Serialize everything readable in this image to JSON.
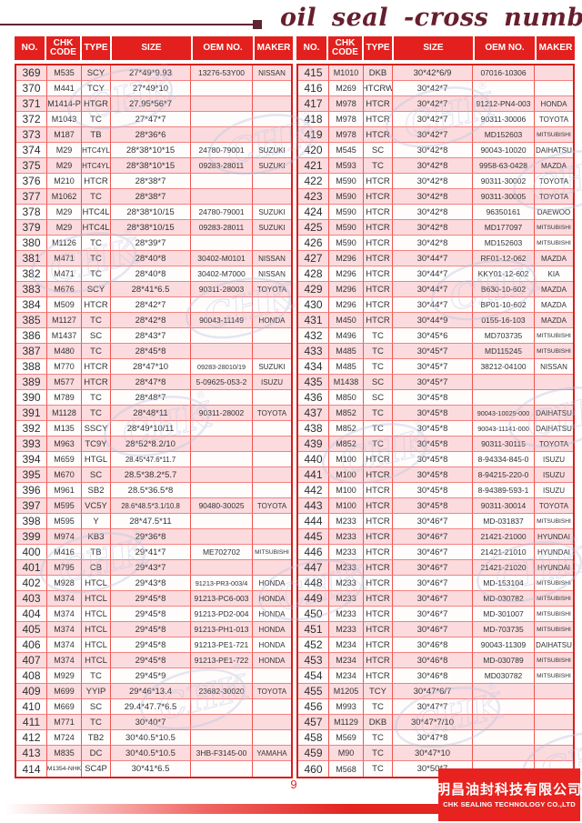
{
  "title": "oil seal -cross number",
  "page_number": "9",
  "columns": [
    "NO.",
    "CHK CODE",
    "TYPE",
    "SIZE",
    "OEM NO.",
    "MAKER"
  ],
  "watermark": {
    "text": "CHK",
    "reg": "®"
  },
  "colors": {
    "header_red": "#e3201d",
    "row_pink": "#fbdbde",
    "row_white": "#fffcfc",
    "grid_red": "#ee5450",
    "title_maroon": "#671f2d",
    "footer_red": "#e8231f",
    "watermark_blue": "#b9c1de"
  },
  "footer": {
    "company_cn": "明昌油封科技有限公司",
    "company_en": "CHK SEALING TECHNOLOGY CO.,LTD"
  },
  "left_table": {
    "rows": [
      [
        "369",
        "M535",
        "SCY",
        "27*49*9.93",
        "13276-53Y00",
        "NISSAN"
      ],
      [
        "370",
        "M441",
        "TCY",
        "27*49*10",
        "",
        ""
      ],
      [
        "371",
        "M1414-P",
        "HTGR",
        "27.95*56*7",
        "",
        ""
      ],
      [
        "372",
        "M1043",
        "TC",
        "27*47*7",
        "",
        ""
      ],
      [
        "373",
        "M187",
        "TB",
        "28*36*6",
        "",
        ""
      ],
      [
        "374",
        "M29",
        "HTC4YL",
        "28*38*10*15",
        "24780-79001",
        "SUZUKI"
      ],
      [
        "375",
        "M29",
        "HTC4YL",
        "28*38*10*15",
        "09283-28011",
        "SUZUKI"
      ],
      [
        "376",
        "M210",
        "HTCR",
        "28*38*7",
        "",
        ""
      ],
      [
        "377",
        "M1062",
        "TC",
        "28*38*7",
        "",
        ""
      ],
      [
        "378",
        "M29",
        "HTC4L",
        "28*38*10/15",
        "24780-79001",
        "SUZUKI"
      ],
      [
        "379",
        "M29",
        "HTC4L",
        "28*38*10/15",
        "09283-28011",
        "SUZUKI"
      ],
      [
        "380",
        "M1126",
        "TC",
        "28*39*7",
        "",
        ""
      ],
      [
        "381",
        "M471",
        "TC",
        "28*40*8",
        "30402-M0101",
        "NISSAN"
      ],
      [
        "382",
        "M471",
        "TC",
        "28*40*8",
        "30402-M7000",
        "NISSAN"
      ],
      [
        "383",
        "M676",
        "SCY",
        "28*41*6.5",
        "90311-28003",
        "TOYOTA"
      ],
      [
        "384",
        "M509",
        "HTCR",
        "28*42*7",
        "",
        ""
      ],
      [
        "385",
        "M1127",
        "TC",
        "28*42*8",
        "90043-11149",
        "HONDA"
      ],
      [
        "386",
        "M1437",
        "SC",
        "28*43*7",
        "",
        ""
      ],
      [
        "387",
        "M480",
        "TC",
        "28*45*8",
        "",
        ""
      ],
      [
        "388",
        "M770",
        "HTCR",
        "28*47*10",
        "09283-28010/19",
        "SUZUKI"
      ],
      [
        "389",
        "M577",
        "HTCR",
        "28*47*8",
        "5-09625-053-2",
        "ISUZU"
      ],
      [
        "390",
        "M789",
        "TC",
        "28*48*7",
        "",
        ""
      ],
      [
        "391",
        "M1128",
        "TC",
        "28*48*11",
        "90311-28002",
        "TOYOTA"
      ],
      [
        "392",
        "M135",
        "SSCY",
        "28*49*10/11",
        "",
        ""
      ],
      [
        "393",
        "M963",
        "TC9Y",
        "28*52*8.2/10",
        "",
        ""
      ],
      [
        "394",
        "M659",
        "HTGL",
        "28.45*47.6*11.7",
        "",
        ""
      ],
      [
        "395",
        "M670",
        "SC",
        "28.5*38.2*5.7",
        "",
        ""
      ],
      [
        "396",
        "M961",
        "SB2",
        "28.5*36.5*8",
        "",
        ""
      ],
      [
        "397",
        "M595",
        "VC5Y",
        "28.6*48.5*3.1/10.8",
        "90480-30025",
        "TOYOTA"
      ],
      [
        "398",
        "M595",
        "Y",
        "28*47.5*11",
        "",
        ""
      ],
      [
        "399",
        "M974",
        "KB3",
        "29*36*8",
        "",
        ""
      ],
      [
        "400",
        "M416",
        "TB",
        "29*41*7",
        "ME702702",
        "MITSUBISHI"
      ],
      [
        "401",
        "M795",
        "CB",
        "29*43*7",
        "",
        ""
      ],
      [
        "402",
        "M928",
        "HTCL",
        "29*43*8",
        "91213-PR3-003/4",
        "HONDA"
      ],
      [
        "403",
        "M374",
        "HTCL",
        "29*45*8",
        "91213-PC6-003",
        "HONDA"
      ],
      [
        "404",
        "M374",
        "HTCL",
        "29*45*8",
        "91213-PD2-004",
        "HONDA"
      ],
      [
        "405",
        "M374",
        "HTCL",
        "29*45*8",
        "91213-PH1-013",
        "HONDA"
      ],
      [
        "406",
        "M374",
        "HTCL",
        "29*45*8",
        "91213-PE1-721",
        "HONDA"
      ],
      [
        "407",
        "M374",
        "HTCL",
        "29*45*8",
        "91213-PE1-722",
        "HONDA"
      ],
      [
        "408",
        "M929",
        "TC",
        "29*45*9",
        "",
        ""
      ],
      [
        "409",
        "M699",
        "YYIP",
        "29*46*13.4",
        "23682-30020",
        "TOYOTA"
      ],
      [
        "410",
        "M669",
        "SC",
        "29.4*47.7*6.5",
        "",
        ""
      ],
      [
        "411",
        "M771",
        "TC",
        "30*40*7",
        "",
        ""
      ],
      [
        "412",
        "M724",
        "TB2",
        "30*40.5*10.5",
        "",
        ""
      ],
      [
        "413",
        "M835",
        "DC",
        "30*40.5*10.5",
        "3HB-F3145-00",
        "YAMAHA"
      ],
      [
        "414",
        "M1354-NHK",
        "SC4P",
        "30*41*6.5",
        "",
        ""
      ]
    ]
  },
  "right_table": {
    "rows": [
      [
        "415",
        "M1010",
        "DKB",
        "30*42*6/9",
        "07016-10306",
        ""
      ],
      [
        "416",
        "M269",
        "HTCRW",
        "30*42*7",
        "",
        ""
      ],
      [
        "417",
        "M978",
        "HTCR",
        "30*42*7",
        "91212-PN4-003",
        "HONDA"
      ],
      [
        "418",
        "M978",
        "HTCR",
        "30*42*7",
        "90311-30006",
        "TOYOTA"
      ],
      [
        "419",
        "M978",
        "HTCR",
        "30*42*7",
        "MD152603",
        "MITSUBISHI"
      ],
      [
        "420",
        "M545",
        "SC",
        "30*42*8",
        "90043-10020",
        "DAIHATSU"
      ],
      [
        "421",
        "M593",
        "TC",
        "30*42*8",
        "9958-63-0428",
        "MAZDA"
      ],
      [
        "422",
        "M590",
        "HTCR",
        "30*42*8",
        "90311-30002",
        "TOYOTA"
      ],
      [
        "423",
        "M590",
        "HTCR",
        "30*42*8",
        "90311-30005",
        "TOYOTA"
      ],
      [
        "424",
        "M590",
        "HTCR",
        "30*42*8",
        "96350161",
        "DAEWOO"
      ],
      [
        "425",
        "M590",
        "HTCR",
        "30*42*8",
        "MD177097",
        "MITSUBISHI"
      ],
      [
        "426",
        "M590",
        "HTCR",
        "30*42*8",
        "MD152603",
        "MITSUBISHI"
      ],
      [
        "427",
        "M296",
        "HTCR",
        "30*44*7",
        "RF01-12-062",
        "MAZDA"
      ],
      [
        "428",
        "M296",
        "HTCR",
        "30*44*7",
        "KKY01-12-602",
        "KIA"
      ],
      [
        "429",
        "M296",
        "HTCR",
        "30*44*7",
        "B630-10-602",
        "MAZDA"
      ],
      [
        "430",
        "M296",
        "HTCR",
        "30*44*7",
        "BP01-10-602",
        "MAZDA"
      ],
      [
        "431",
        "M450",
        "HTCR",
        "30*44*9",
        "0155-16-103",
        "MAZDA"
      ],
      [
        "432",
        "M496",
        "TC",
        "30*45*6",
        "MD703735",
        "MITSUBISHI"
      ],
      [
        "433",
        "M485",
        "TC",
        "30*45*7",
        "MD115245",
        "MITSUBISHI"
      ],
      [
        "434",
        "M485",
        "TC",
        "30*45*7",
        "38212-04100",
        "NISSAN"
      ],
      [
        "435",
        "M1438",
        "SC",
        "30*45*7",
        "",
        ""
      ],
      [
        "436",
        "M850",
        "SC",
        "30*45*8",
        "",
        ""
      ],
      [
        "437",
        "M852",
        "TC",
        "30*45*8",
        "90043-10029-000",
        "DAIHATSU"
      ],
      [
        "438",
        "M852",
        "TC",
        "30*45*8",
        "90043-11141-000",
        "DAIHATSU"
      ],
      [
        "439",
        "M852",
        "TC",
        "30*45*8",
        "90311-30115",
        "TOYOTA"
      ],
      [
        "440",
        "M100",
        "HTCR",
        "30*45*8",
        "8-94334-845-0",
        "ISUZU"
      ],
      [
        "441",
        "M100",
        "HTCR",
        "30*45*8",
        "8-94215-220-0",
        "ISUZU"
      ],
      [
        "442",
        "M100",
        "HTCR",
        "30*45*8",
        "8-94389-593-1",
        "ISUZU"
      ],
      [
        "443",
        "M100",
        "HTCR",
        "30*45*8",
        "90311-30014",
        "TOYOTA"
      ],
      [
        "444",
        "M233",
        "HTCR",
        "30*46*7",
        "MD-031837",
        "MITSUBISHI"
      ],
      [
        "445",
        "M233",
        "HTCR",
        "30*46*7",
        "21421-21000",
        "HYUNDAI"
      ],
      [
        "446",
        "M233",
        "HTCR",
        "30*46*7",
        "21421-21010",
        "HYUNDAI"
      ],
      [
        "447",
        "M233",
        "HTCR",
        "30*46*7",
        "21421-21020",
        "HYUNDAI"
      ],
      [
        "448",
        "M233",
        "HTCR",
        "30*46*7",
        "MD-153104",
        "MITSUBISHI"
      ],
      [
        "449",
        "M233",
        "HTCR",
        "30*46*7",
        "MD-030782",
        "MITSUBISHI"
      ],
      [
        "450",
        "M233",
        "HTCR",
        "30*46*7",
        "MD-301007",
        "MITSUBISHI"
      ],
      [
        "451",
        "M233",
        "HTCR",
        "30*46*7",
        "MD-703735",
        "MITSUBISHI"
      ],
      [
        "452",
        "M234",
        "HTCR",
        "30*46*8",
        "90043-11309",
        "DAIHATSU"
      ],
      [
        "453",
        "M234",
        "HTCR",
        "30*46*8",
        "MD-030789",
        "MITSUBISHI"
      ],
      [
        "454",
        "M234",
        "HTCR",
        "30*46*8",
        "MD030782",
        "MITSUBISHI"
      ],
      [
        "455",
        "M1205",
        "TCY",
        "30*47*6/7",
        "",
        ""
      ],
      [
        "456",
        "M993",
        "TC",
        "30*47*7",
        "",
        ""
      ],
      [
        "457",
        "M1129",
        "DKB",
        "30*47*7/10",
        "",
        ""
      ],
      [
        "458",
        "M569",
        "TC",
        "30*47*8",
        "",
        ""
      ],
      [
        "459",
        "M90",
        "TC",
        "30*47*10",
        "",
        ""
      ],
      [
        "460",
        "M568",
        "TC",
        "30*50*7",
        "",
        ""
      ]
    ]
  }
}
